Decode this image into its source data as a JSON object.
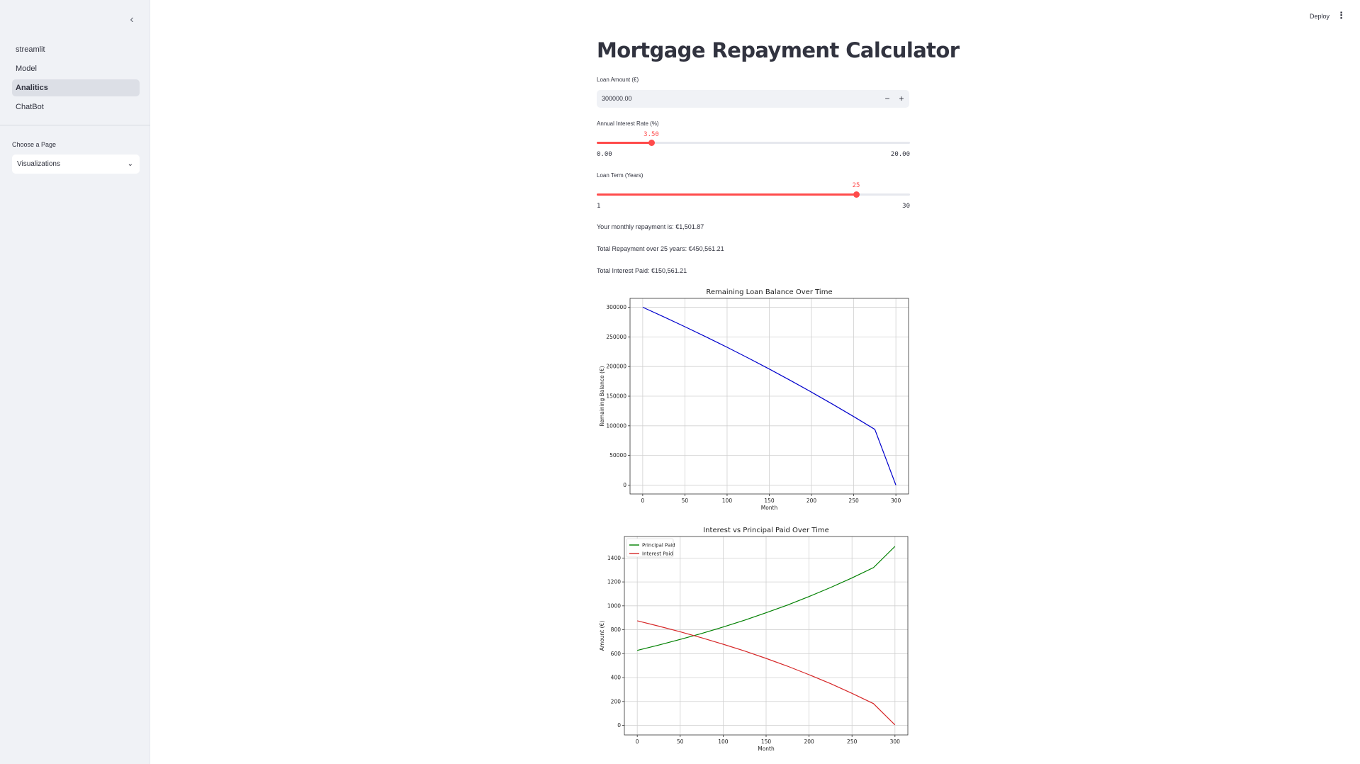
{
  "sidebar": {
    "collapse_icon": "chevron-left-icon",
    "items": [
      {
        "label": "streamlit",
        "active": false
      },
      {
        "label": "Model",
        "active": false
      },
      {
        "label": "Analitics",
        "active": true
      },
      {
        "label": "ChatBot",
        "active": false
      }
    ],
    "choose_label": "Choose a Page",
    "select_value": "Visualizations"
  },
  "header": {
    "deploy_label": "Deploy",
    "menu_icon": "kebab-menu-icon"
  },
  "main": {
    "title": "Mortgage Repayment Calculator",
    "loan_amount": {
      "label": "Loan Amount (€)",
      "value": "300000.00",
      "minus": "−",
      "plus": "+"
    },
    "interest_rate": {
      "label": "Annual Interest Rate (%)",
      "value": 3.5,
      "value_text": "3.50",
      "min": 0,
      "max": 20,
      "min_text": "0.00",
      "max_text": "20.00"
    },
    "loan_term": {
      "label": "Loan Term (Years)",
      "value": 25,
      "value_text": "25",
      "min": 1,
      "max": 30,
      "min_text": "1",
      "max_text": "30"
    },
    "monthly_text": "Your monthly repayment is: €1,501.87",
    "total_text": "Total Repayment over 25 years: €450,561.21",
    "interest_text": "Total Interest Paid: €150,561.21"
  },
  "colors": {
    "accent": "#ff4b4b",
    "balance_line": "#0000cc",
    "principal_line": "#008000",
    "interest_line": "#d62728"
  },
  "chart_data": [
    {
      "type": "line",
      "title": "Remaining Loan Balance Over Time",
      "xlabel": "Month",
      "ylabel": "Remaining Balance (€)",
      "xlim": [
        -15,
        315
      ],
      "ylim": [
        -15000,
        315000
      ],
      "xticks": [
        0,
        50,
        100,
        150,
        200,
        250,
        300
      ],
      "yticks": [
        0,
        50000,
        100000,
        150000,
        200000,
        250000,
        300000
      ],
      "grid": true,
      "series": [
        {
          "color": "#0000cc",
          "x": [
            0,
            25,
            50,
            75,
            100,
            125,
            150,
            175,
            200,
            225,
            250,
            275,
            300
          ],
          "y": [
            300000,
            283847,
            267223,
            250115,
            232507,
            214386,
            195735,
            176540,
            156785,
            136454,
            115529,
            93994,
            0
          ]
        }
      ]
    },
    {
      "type": "line",
      "title": "Interest vs Principal Paid Over Time",
      "xlabel": "Month",
      "ylabel": "Amount (€)",
      "xlim": [
        -15,
        315
      ],
      "ylim": [
        -80,
        1580
      ],
      "xticks": [
        0,
        50,
        100,
        150,
        200,
        250,
        300
      ],
      "yticks": [
        0,
        200,
        400,
        600,
        800,
        1000,
        1200,
        1400
      ],
      "grid": true,
      "legend": "top-left",
      "series": [
        {
          "name": "Principal Paid",
          "color": "#008000",
          "x": [
            0,
            25,
            50,
            75,
            100,
            125,
            150,
            175,
            200,
            225,
            250,
            275,
            300
          ],
          "y": [
            627,
            672,
            719,
            769,
            823,
            880,
            942,
            1007,
            1078,
            1153,
            1234,
            1320,
            1497
          ]
        },
        {
          "name": "Interest Paid",
          "color": "#d62728",
          "x": [
            0,
            25,
            50,
            75,
            100,
            125,
            150,
            175,
            200,
            225,
            250,
            275,
            300
          ],
          "y": [
            875,
            830,
            783,
            733,
            679,
            622,
            560,
            495,
            424,
            349,
            268,
            182,
            4
          ]
        }
      ]
    }
  ]
}
